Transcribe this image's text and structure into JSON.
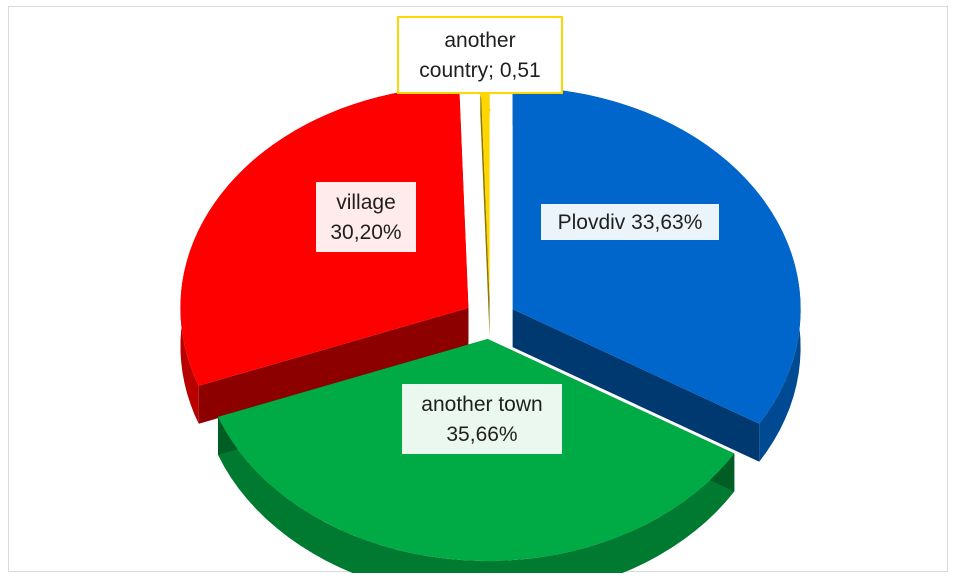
{
  "chart_data": {
    "type": "pie",
    "style": "3d-exploded",
    "categories": [
      "Plovdiv",
      "another town",
      "village",
      "another country"
    ],
    "values": [
      33.63,
      35.66,
      30.2,
      0.51
    ],
    "colors": [
      "#0066cc",
      "#00aa44",
      "#ff0000",
      "#ffd700"
    ],
    "data_labels": [
      [
        "Plovdiv 33,63%"
      ],
      [
        "another town",
        "35,66%"
      ],
      [
        "village",
        "30,20%"
      ],
      [
        "another",
        "country; 0,51"
      ]
    ],
    "legend": "none"
  }
}
